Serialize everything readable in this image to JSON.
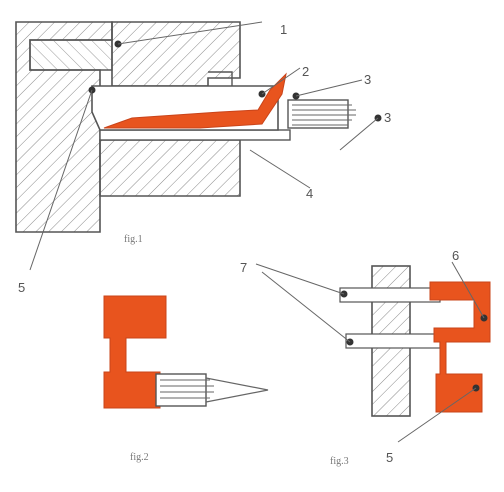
{
  "figure": {
    "fig1": {
      "caption": "fig.1",
      "callouts": [
        "1",
        "2",
        "3",
        "3",
        "4",
        "5"
      ]
    },
    "fig2": {
      "caption": "fig.2"
    },
    "fig3": {
      "caption": "fig.3",
      "callouts": [
        "7",
        "6",
        "5"
      ]
    },
    "colors": {
      "part": "#e8541e",
      "line": "#555555",
      "hatch": "#8a8a8a"
    }
  }
}
